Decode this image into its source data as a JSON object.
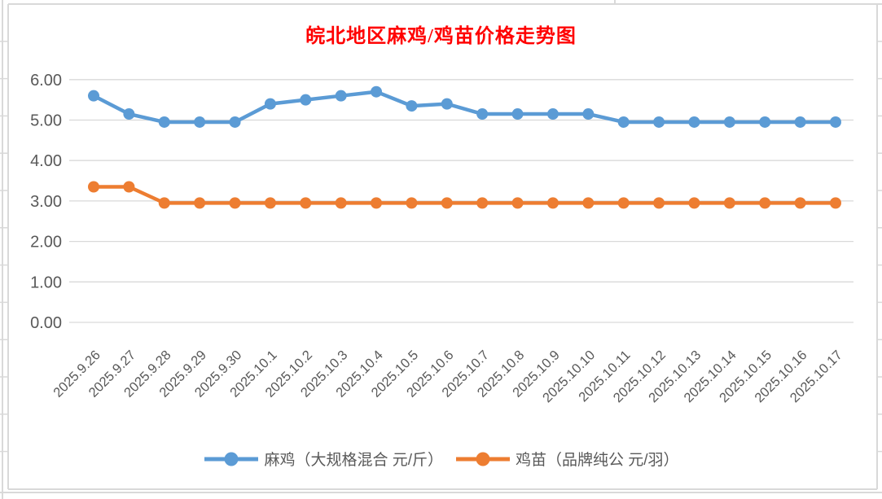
{
  "title": {
    "text": "皖北地区麻鸡/鸡苗价格走势图",
    "color": "#FF0000"
  },
  "chart_data": {
    "type": "line",
    "title": "皖北地区麻鸡/鸡苗价格走势图",
    "categories": [
      "2025.9.26",
      "2025.9.27",
      "2025.9.28",
      "2025.9.29",
      "2025.9.30",
      "2025.10.1",
      "2025.10.2",
      "2025.10.3",
      "2025.10.4",
      "2025.10.5",
      "2025.10.6",
      "2025.10.7",
      "2025.10.8",
      "2025.10.9",
      "2025.10.10",
      "2025.10.11",
      "2025.10.12",
      "2025.10.13",
      "2025.10.14",
      "2025.10.15",
      "2025.10.16",
      "2025.10.17"
    ],
    "series": [
      {
        "name": "麻鸡（大规格混合 元/斤）",
        "color": "#5B9BD5",
        "values": [
          5.6,
          5.15,
          4.95,
          4.95,
          4.95,
          5.4,
          5.5,
          5.6,
          5.7,
          5.35,
          5.4,
          5.15,
          5.15,
          5.15,
          5.15,
          4.95,
          4.95,
          4.95,
          4.95,
          4.95,
          4.95,
          4.95
        ]
      },
      {
        "name": "鸡苗（品牌纯公 元/羽）",
        "color": "#ED7D31",
        "values": [
          3.35,
          3.35,
          2.95,
          2.95,
          2.95,
          2.95,
          2.95,
          2.95,
          2.95,
          2.95,
          2.95,
          2.95,
          2.95,
          2.95,
          2.95,
          2.95,
          2.95,
          2.95,
          2.95,
          2.95,
          2.95,
          2.95
        ]
      }
    ],
    "ylim": [
      0,
      6
    ],
    "ytick_step": 1,
    "ytick_labels": [
      "0.00",
      "1.00",
      "2.00",
      "3.00",
      "4.00",
      "5.00",
      "6.00"
    ],
    "grid": true,
    "xlabel": "",
    "ylabel": "",
    "legend_position": "bottom",
    "x_label_rotation_deg": 45,
    "colors": {
      "grid": "#D9D9D9",
      "axis_text": "#595959",
      "frame": "#D9D9D9",
      "title": "#FF0000"
    }
  }
}
